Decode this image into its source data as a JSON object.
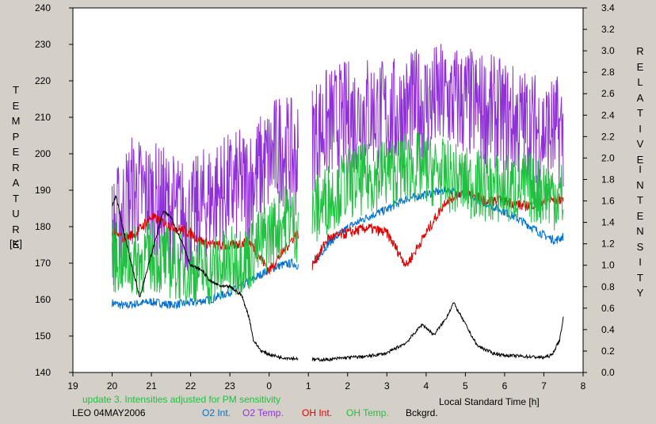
{
  "chart_data": {
    "type": "line",
    "xlabel": "Local Standard Time [h]",
    "ylabel_left": "TEMPERATURE [K]",
    "ylabel_left_text": "TEMPERATURE",
    "ylabel_left_unit": "[K]",
    "ylabel_right": "RELATIVE INTENSITY",
    "ylabel_right_word1": "RELATIVE",
    "ylabel_right_word2": "INTENSITY",
    "x_tick_labels": [
      "19",
      "20",
      "21",
      "22",
      "23",
      "0",
      "1",
      "2",
      "3",
      "4",
      "5",
      "6",
      "7",
      "8"
    ],
    "xlim": [
      19,
      32
    ],
    "ylim_left": [
      140,
      240
    ],
    "ylim_right": [
      0.0,
      3.4
    ],
    "y_left_ticks": [
      140,
      150,
      160,
      170,
      180,
      190,
      200,
      210,
      220,
      230,
      240
    ],
    "y_right_ticks": [
      "0.0",
      "0.2",
      "0.4",
      "0.6",
      "0.8",
      "1.0",
      "1.2",
      "1.4",
      "1.6",
      "1.8",
      "2.0",
      "2.2",
      "2.4",
      "2.6",
      "2.8",
      "3.0",
      "3.2",
      "3.4"
    ],
    "annotation": "update 3. Intensities adjusted for PM sensitivity",
    "station": "LEO 04MAY2006",
    "grid": false,
    "series": [
      {
        "name": "O2 Int.",
        "color": "#0070d0",
        "axis": "right",
        "noise": 0.04,
        "points": [
          [
            20.0,
            0.65
          ],
          [
            20.3,
            0.62
          ],
          [
            20.6,
            0.64
          ],
          [
            21.0,
            0.66
          ],
          [
            21.5,
            0.63
          ],
          [
            22.0,
            0.65
          ],
          [
            22.5,
            0.68
          ],
          [
            23.0,
            0.75
          ],
          [
            23.5,
            0.85
          ],
          [
            24.0,
            0.96
          ],
          [
            24.3,
            1.0
          ],
          [
            24.6,
            1.02
          ],
          [
            24.7,
            1.0
          ],
          [
            25.1,
            1.0
          ],
          [
            25.5,
            1.2
          ],
          [
            26.0,
            1.35
          ],
          [
            26.5,
            1.45
          ],
          [
            27.0,
            1.52
          ],
          [
            27.5,
            1.62
          ],
          [
            28.0,
            1.66
          ],
          [
            28.5,
            1.7
          ],
          [
            29.0,
            1.66
          ],
          [
            29.5,
            1.58
          ],
          [
            30.0,
            1.5
          ],
          [
            30.5,
            1.4
          ],
          [
            31.0,
            1.28
          ],
          [
            31.3,
            1.23
          ],
          [
            31.5,
            1.27
          ]
        ]
      },
      {
        "name": "O2 Temp.",
        "color": "#9030d8",
        "axis": "left",
        "noise": 16,
        "points": [
          [
            20.0,
            178
          ],
          [
            20.5,
            190
          ],
          [
            21.0,
            188
          ],
          [
            21.5,
            185
          ],
          [
            22.0,
            182
          ],
          [
            22.5,
            188
          ],
          [
            23.0,
            190
          ],
          [
            23.5,
            192
          ],
          [
            24.0,
            198
          ],
          [
            24.3,
            202
          ],
          [
            24.7,
            198
          ],
          [
            25.1,
            205
          ],
          [
            25.5,
            208
          ],
          [
            26.0,
            210
          ],
          [
            26.5,
            212
          ],
          [
            27.0,
            210
          ],
          [
            27.5,
            212
          ],
          [
            28.0,
            214
          ],
          [
            28.5,
            215
          ],
          [
            29.0,
            214
          ],
          [
            29.5,
            212
          ],
          [
            30.0,
            210
          ],
          [
            30.5,
            208
          ],
          [
            31.0,
            206
          ],
          [
            31.5,
            206
          ]
        ]
      },
      {
        "name": "OH Int.",
        "color": "#e00000",
        "axis": "right",
        "noise": 0.05,
        "points": [
          [
            20.0,
            1.3
          ],
          [
            20.3,
            1.25
          ],
          [
            20.6,
            1.3
          ],
          [
            21.0,
            1.45
          ],
          [
            21.3,
            1.4
          ],
          [
            21.6,
            1.35
          ],
          [
            22.0,
            1.3
          ],
          [
            22.3,
            1.22
          ],
          [
            22.7,
            1.18
          ],
          [
            23.0,
            1.18
          ],
          [
            23.5,
            1.22
          ],
          [
            24.0,
            0.95
          ],
          [
            24.3,
            1.1
          ],
          [
            24.7,
            1.3
          ],
          [
            25.1,
            1.0
          ],
          [
            25.5,
            1.25
          ],
          [
            26.0,
            1.3
          ],
          [
            26.5,
            1.35
          ],
          [
            27.0,
            1.3
          ],
          [
            27.5,
            1.0
          ],
          [
            28.0,
            1.3
          ],
          [
            28.5,
            1.6
          ],
          [
            29.0,
            1.7
          ],
          [
            29.5,
            1.6
          ],
          [
            30.0,
            1.6
          ],
          [
            30.5,
            1.55
          ],
          [
            31.0,
            1.6
          ],
          [
            31.5,
            1.62
          ]
        ]
      },
      {
        "name": "OH Temp.",
        "color": "#20c040",
        "axis": "left",
        "noise": 10,
        "points": [
          [
            20.0,
            172
          ],
          [
            20.5,
            170
          ],
          [
            21.0,
            172
          ],
          [
            21.5,
            170
          ],
          [
            22.0,
            168
          ],
          [
            22.5,
            168
          ],
          [
            23.0,
            170
          ],
          [
            23.5,
            172
          ],
          [
            24.0,
            178
          ],
          [
            24.5,
            183
          ],
          [
            24.7,
            180
          ],
          [
            25.1,
            183
          ],
          [
            25.5,
            188
          ],
          [
            26.0,
            192
          ],
          [
            26.5,
            193
          ],
          [
            27.0,
            195
          ],
          [
            27.5,
            196
          ],
          [
            28.0,
            196
          ],
          [
            28.5,
            194
          ],
          [
            29.0,
            192
          ],
          [
            29.5,
            191
          ],
          [
            30.0,
            190
          ],
          [
            30.5,
            191
          ],
          [
            31.0,
            190
          ],
          [
            31.5,
            188
          ]
        ]
      },
      {
        "name": "Bckgrd.",
        "color": "#000000",
        "axis": "right",
        "noise": 0.015,
        "points": [
          [
            20.0,
            1.55
          ],
          [
            20.1,
            1.65
          ],
          [
            20.3,
            1.3
          ],
          [
            20.5,
            1.0
          ],
          [
            20.7,
            0.7
          ],
          [
            21.0,
            1.1
          ],
          [
            21.3,
            1.5
          ],
          [
            21.5,
            1.45
          ],
          [
            21.8,
            1.2
          ],
          [
            22.0,
            1.0
          ],
          [
            22.3,
            0.95
          ],
          [
            22.5,
            0.85
          ],
          [
            22.8,
            0.8
          ],
          [
            23.0,
            0.8
          ],
          [
            23.3,
            0.72
          ],
          [
            23.5,
            0.5
          ],
          [
            23.6,
            0.3
          ],
          [
            23.8,
            0.2
          ],
          [
            24.0,
            0.17
          ],
          [
            24.3,
            0.14
          ],
          [
            24.7,
            0.13
          ],
          [
            25.1,
            0.12
          ],
          [
            25.5,
            0.12
          ],
          [
            26.0,
            0.14
          ],
          [
            26.5,
            0.15
          ],
          [
            27.0,
            0.18
          ],
          [
            27.5,
            0.28
          ],
          [
            27.9,
            0.45
          ],
          [
            28.2,
            0.35
          ],
          [
            28.5,
            0.5
          ],
          [
            28.7,
            0.65
          ],
          [
            29.0,
            0.45
          ],
          [
            29.3,
            0.25
          ],
          [
            29.7,
            0.18
          ],
          [
            30.0,
            0.16
          ],
          [
            30.5,
            0.15
          ],
          [
            31.0,
            0.14
          ],
          [
            31.2,
            0.16
          ],
          [
            31.4,
            0.3
          ],
          [
            31.5,
            0.52
          ]
        ]
      }
    ]
  }
}
